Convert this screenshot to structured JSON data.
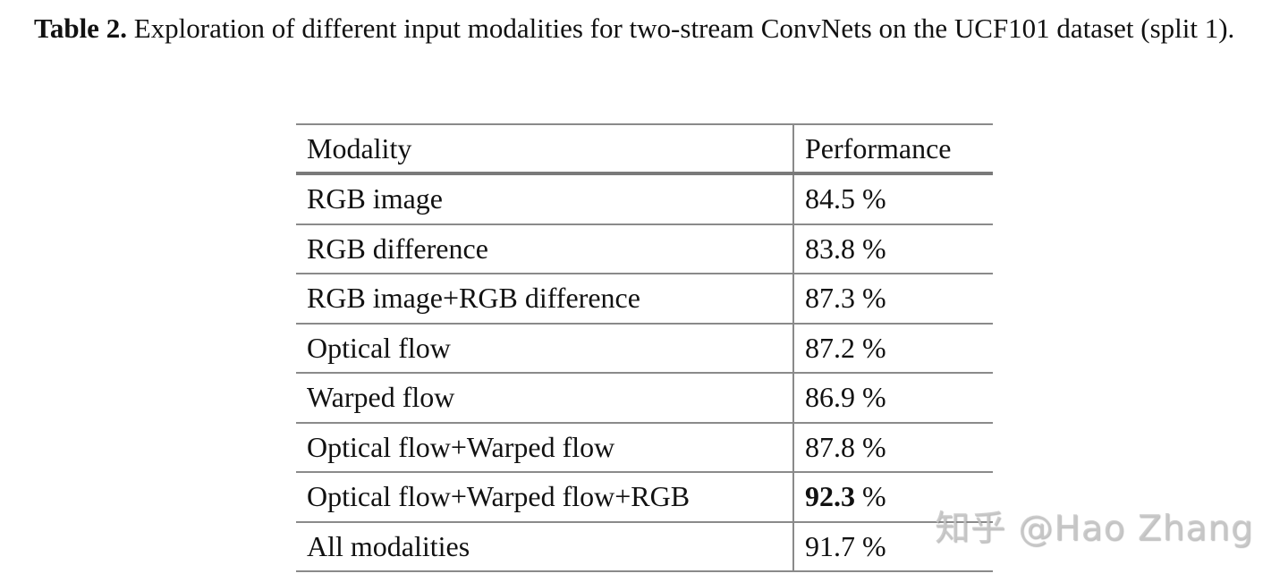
{
  "caption": {
    "label": "Table 2.",
    "text": "Exploration of different input modalities for two-stream ConvNets on the UCF101 dataset (split 1)."
  },
  "table": {
    "headers": [
      "Modality",
      "Performance"
    ],
    "rows": [
      {
        "modality": "RGB image",
        "performance": "84.5 %"
      },
      {
        "modality": "RGB difference",
        "performance": "83.8 %"
      },
      {
        "modality": "RGB image+RGB difference",
        "performance": "87.3 %"
      },
      {
        "modality": "Optical flow",
        "performance": "87.2 %"
      },
      {
        "modality": "Warped flow",
        "performance": "86.9 %"
      },
      {
        "modality": "Optical flow+Warped flow",
        "performance": "87.8 %"
      },
      {
        "modality": "Optical flow+Warped flow+RGB",
        "performance_bold": "92.3",
        "performance_suffix": " %"
      },
      {
        "modality": "All modalities",
        "performance": "91.7 %"
      }
    ]
  },
  "watermark": "知乎 @Hao Zhang"
}
